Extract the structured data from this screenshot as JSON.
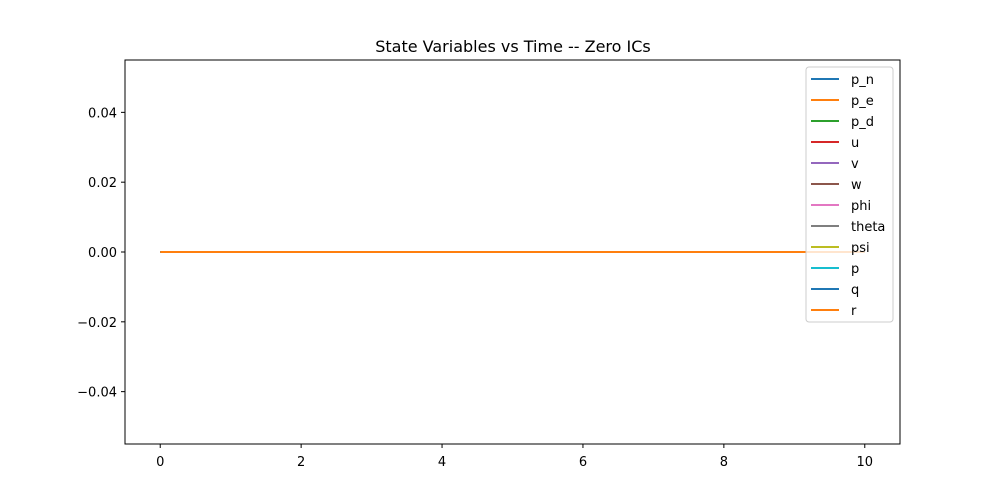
{
  "chart_data": {
    "type": "line",
    "title": "State Variables vs Time -- Zero ICs",
    "xlabel": "",
    "ylabel": "",
    "xlim": [
      -0.5,
      10.5
    ],
    "ylim": [
      -0.055,
      0.055
    ],
    "xticks": [
      0,
      2,
      4,
      6,
      8,
      10
    ],
    "xtick_labels": [
      "0",
      "2",
      "4",
      "6",
      "8",
      "10"
    ],
    "yticks": [
      -0.04,
      -0.02,
      0.0,
      0.02,
      0.04
    ],
    "ytick_labels": [
      "−0.04",
      "−0.02",
      "0.00",
      "0.02",
      "0.04"
    ],
    "grid": false,
    "legend_position": "top-right",
    "x": [
      0,
      10
    ],
    "series": [
      {
        "name": "p_n",
        "color": "#1f77b4",
        "values": [
          0,
          0
        ]
      },
      {
        "name": "p_e",
        "color": "#ff7f0e",
        "values": [
          0,
          0
        ]
      },
      {
        "name": "p_d",
        "color": "#2ca02c",
        "values": [
          0,
          0
        ]
      },
      {
        "name": "u",
        "color": "#d62728",
        "values": [
          0,
          0
        ]
      },
      {
        "name": "v",
        "color": "#9467bd",
        "values": [
          0,
          0
        ]
      },
      {
        "name": "w",
        "color": "#8c564b",
        "values": [
          0,
          0
        ]
      },
      {
        "name": "phi",
        "color": "#e377c2",
        "values": [
          0,
          0
        ]
      },
      {
        "name": "theta",
        "color": "#7f7f7f",
        "values": [
          0,
          0
        ]
      },
      {
        "name": "psi",
        "color": "#bcbd22",
        "values": [
          0,
          0
        ]
      },
      {
        "name": "p",
        "color": "#17becf",
        "values": [
          0,
          0
        ]
      },
      {
        "name": "q",
        "color": "#1f77b4",
        "values": [
          0,
          0
        ]
      },
      {
        "name": "r",
        "color": "#ff7f0e",
        "values": [
          0,
          0
        ]
      }
    ]
  }
}
